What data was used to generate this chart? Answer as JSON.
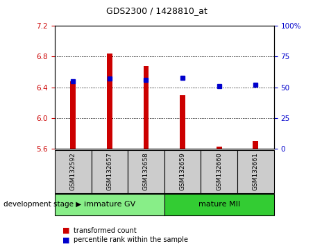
{
  "title": "GDS2300 / 1428810_at",
  "samples": [
    "GSM132592",
    "GSM132657",
    "GSM132658",
    "GSM132659",
    "GSM132660",
    "GSM132661"
  ],
  "bar_values": [
    6.48,
    6.84,
    6.68,
    6.3,
    5.63,
    5.7
  ],
  "percentile_values": [
    55,
    57,
    56,
    58,
    51,
    52
  ],
  "bar_bottom": 5.6,
  "ylim_left": [
    5.6,
    7.2
  ],
  "ylim_right": [
    0,
    100
  ],
  "yticks_left": [
    5.6,
    6.0,
    6.4,
    6.8,
    7.2
  ],
  "yticks_right": [
    0,
    25,
    50,
    75,
    100
  ],
  "ytick_labels_right": [
    "0",
    "25",
    "50",
    "75",
    "100%"
  ],
  "bar_color": "#cc0000",
  "percentile_color": "#0000cc",
  "bar_width": 0.15,
  "groups": [
    {
      "label": "immature GV",
      "indices": [
        0,
        1,
        2
      ],
      "color": "#88ee88"
    },
    {
      "label": "mature MII",
      "indices": [
        3,
        4,
        5
      ],
      "color": "#33cc33"
    }
  ],
  "group_label_prefix": "development stage",
  "sample_bg_color": "#cccccc",
  "legend_bar_label": "transformed count",
  "legend_pct_label": "percentile rank within the sample",
  "title_color": "#000000",
  "left_tick_color": "#cc0000",
  "right_tick_color": "#0000cc",
  "grid_linestyle": ":"
}
